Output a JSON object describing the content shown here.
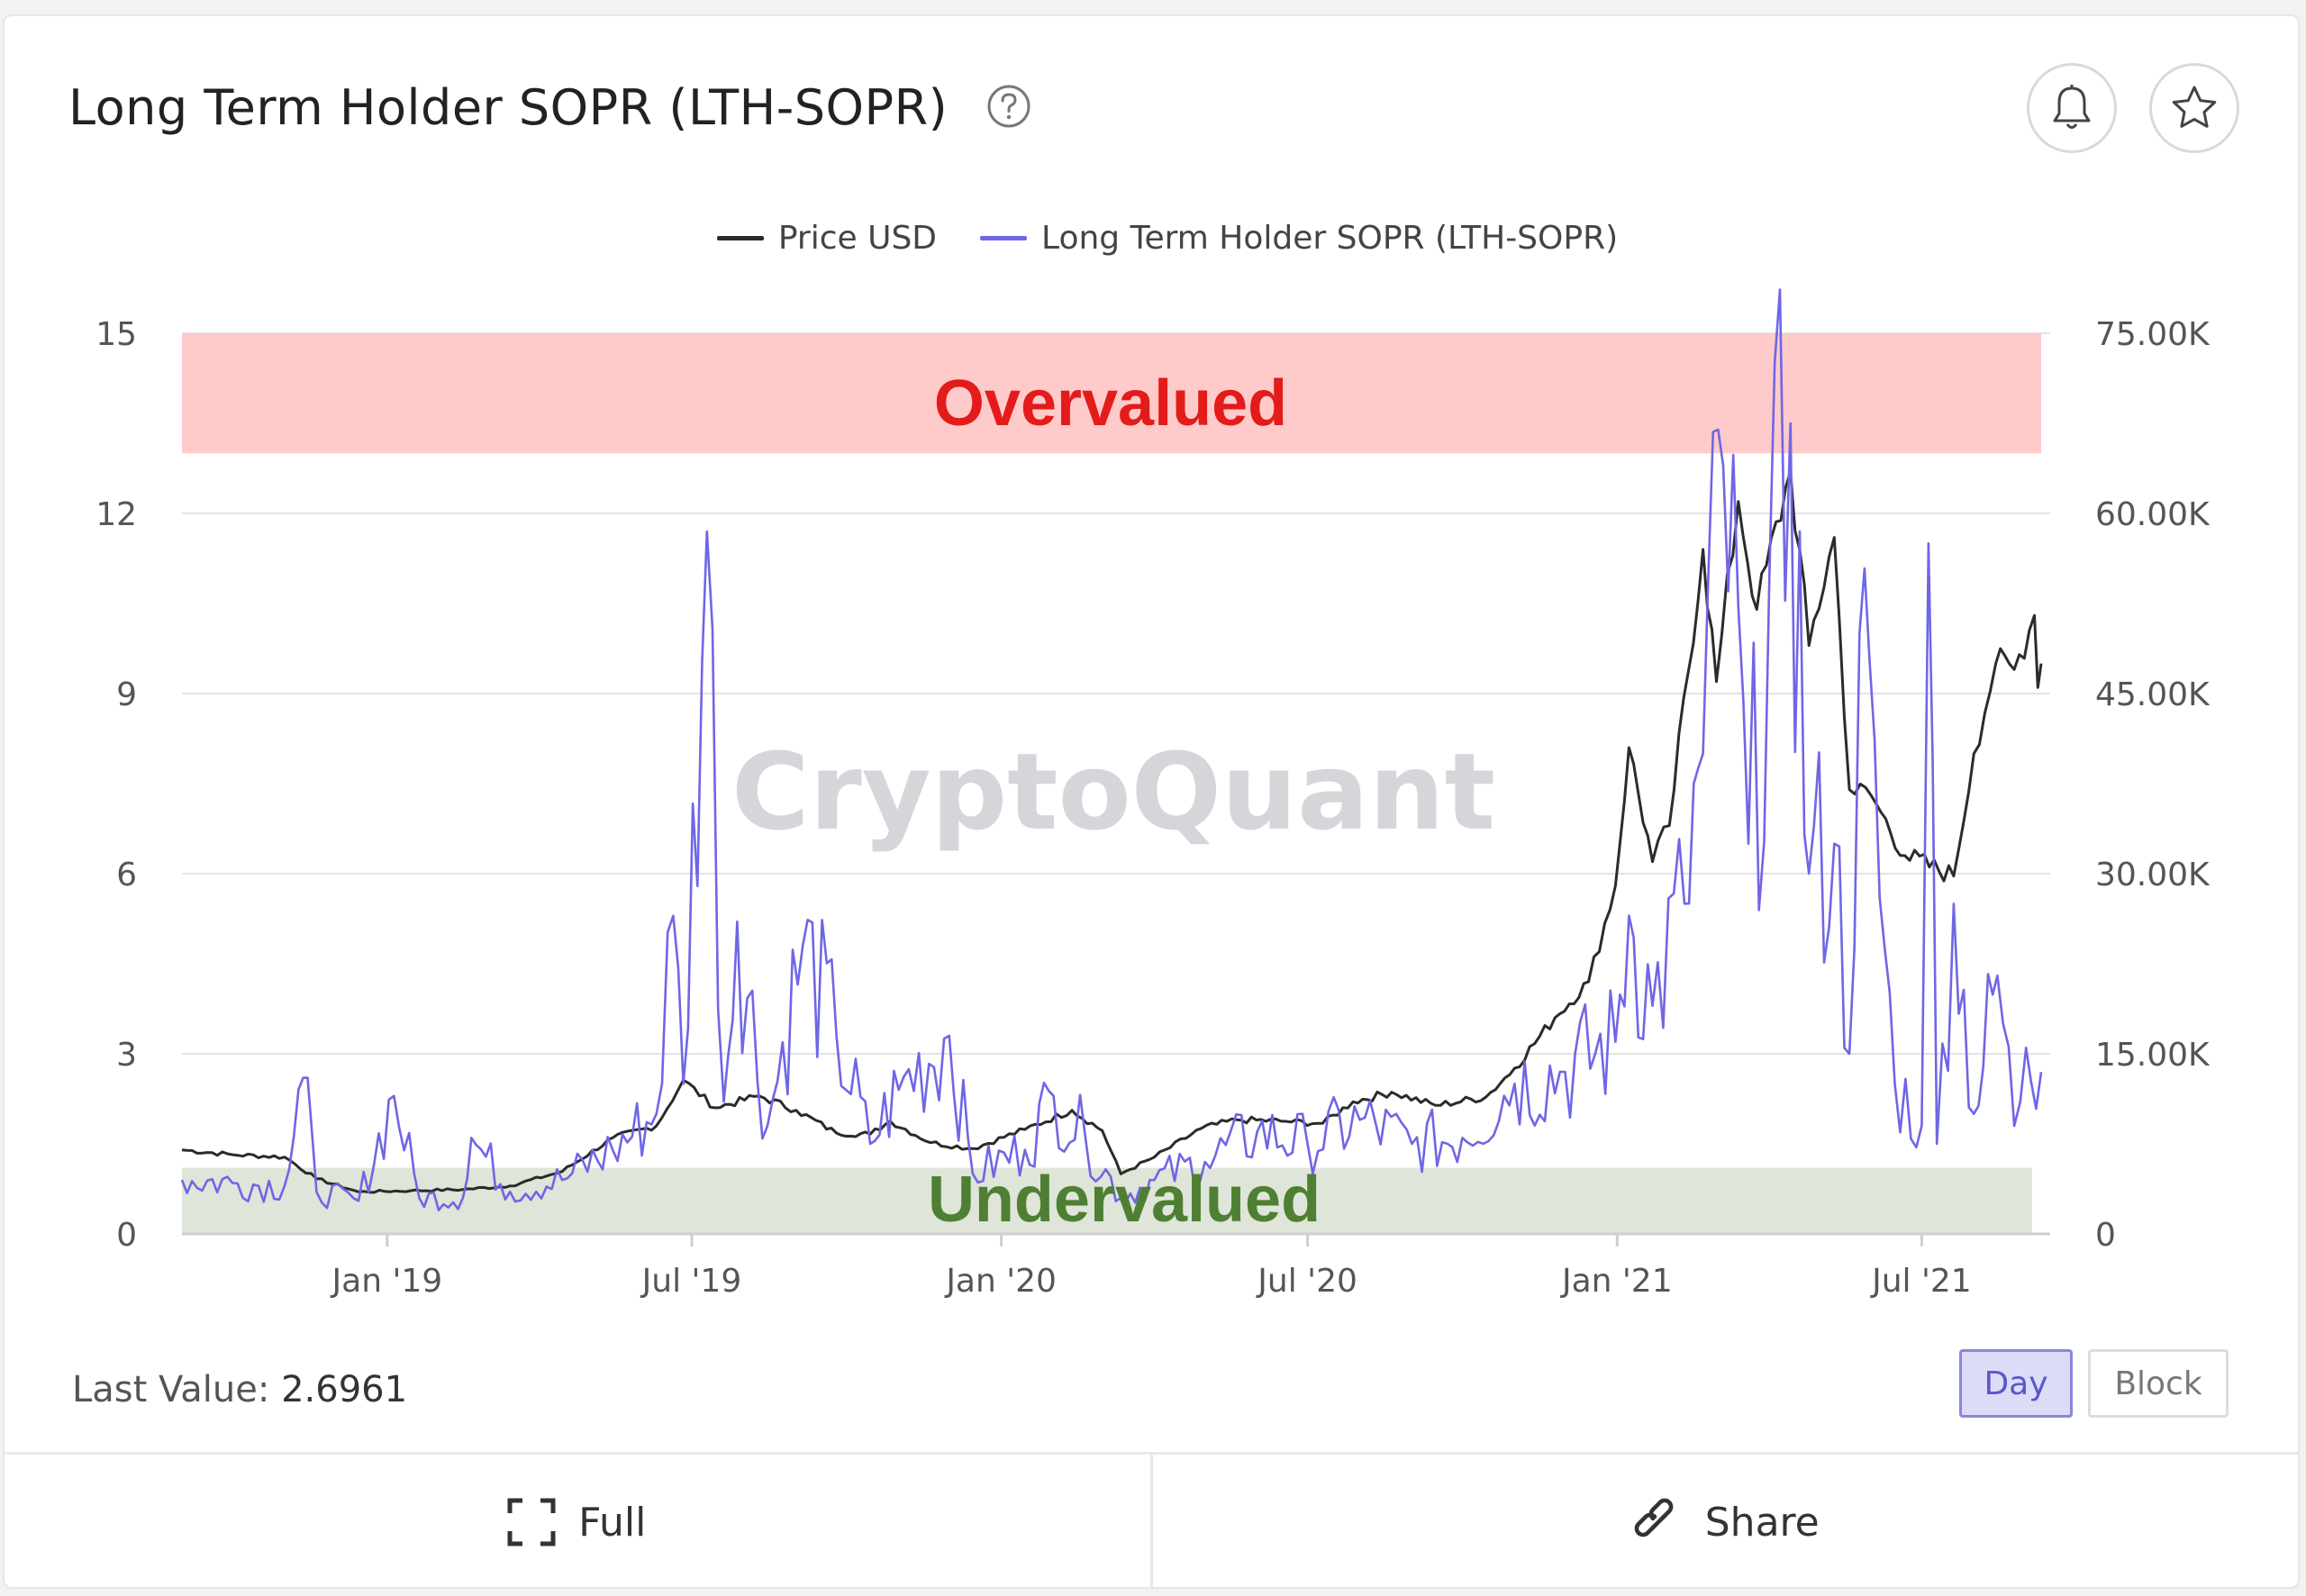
{
  "header": {
    "title": "Long Term Holder SOPR (LTH-SOPR)",
    "help_icon": "question-circle-icon",
    "bell_icon": "bell-icon",
    "star_icon": "star-icon"
  },
  "watermark": "CryptoQuant",
  "zones": {
    "overvalued": {
      "label": "Overvalued",
      "from": 13,
      "to": 15,
      "color": "#ffcaca",
      "text_color": "#e31b1b"
    },
    "undervalued": {
      "label": "Undervalued",
      "from": 0,
      "to": 1.1,
      "color": "#dfe5d8",
      "text_color": "#4e7f33"
    }
  },
  "footer": {
    "last_value_label": "Last Value:",
    "last_value": "2.6961",
    "day_label": "Day",
    "block_label": "Block",
    "full_label": "Full",
    "share_label": "Share"
  },
  "chart_data": {
    "type": "line",
    "title": "Long Term Holder SOPR (LTH-SOPR)",
    "x_range": [
      "2018-09-01",
      "2021-09-10"
    ],
    "x_ticks": [
      {
        "label": "Jan '19",
        "date": "2019-01-01"
      },
      {
        "label": "Jul '19",
        "date": "2019-07-01"
      },
      {
        "label": "Jan '20",
        "date": "2020-01-01"
      },
      {
        "label": "Jul '20",
        "date": "2020-07-01"
      },
      {
        "label": "Jan '21",
        "date": "2021-01-01"
      },
      {
        "label": "Jul '21",
        "date": "2021-07-01"
      }
    ],
    "y_left": {
      "min": 0,
      "max": 15,
      "ticks": [
        0,
        3,
        6,
        9,
        12,
        15
      ],
      "tick_labels": [
        "0",
        "3",
        "6",
        "9",
        "12",
        "15"
      ]
    },
    "y_right": {
      "min": 0,
      "max": 75000,
      "ticks": [
        0,
        15000,
        30000,
        45000,
        60000,
        75000
      ],
      "tick_labels": [
        "0",
        "15.00K",
        "30.00K",
        "45.00K",
        "60.00K",
        "75.00K"
      ]
    },
    "grid": true,
    "legend_position": "top-center",
    "series": [
      {
        "name": "Price USD",
        "axis": "right",
        "color": "#2b2b2b",
        "points": [
          [
            "2018-09-01",
            7000
          ],
          [
            "2018-10-01",
            6600
          ],
          [
            "2018-11-01",
            6400
          ],
          [
            "2018-11-20",
            4600
          ],
          [
            "2018-12-15",
            3500
          ],
          [
            "2019-01-15",
            3600
          ],
          [
            "2019-02-15",
            3700
          ],
          [
            "2019-03-15",
            4000
          ],
          [
            "2019-04-15",
            5200
          ],
          [
            "2019-05-15",
            8000
          ],
          [
            "2019-06-10",
            9000
          ],
          [
            "2019-06-26",
            12800
          ],
          [
            "2019-07-15",
            10500
          ],
          [
            "2019-08-10",
            11500
          ],
          [
            "2019-09-01",
            10300
          ],
          [
            "2019-09-25",
            8400
          ],
          [
            "2019-10-15",
            8300
          ],
          [
            "2019-10-27",
            9400
          ],
          [
            "2019-11-20",
            7600
          ],
          [
            "2019-12-15",
            7100
          ],
          [
            "2020-01-15",
            8700
          ],
          [
            "2020-02-12",
            10300
          ],
          [
            "2020-03-01",
            8600
          ],
          [
            "2020-03-12",
            5000
          ],
          [
            "2020-04-01",
            6400
          ],
          [
            "2020-04-29",
            8800
          ],
          [
            "2020-05-20",
            9500
          ],
          [
            "2020-06-15",
            9400
          ],
          [
            "2020-07-10",
            9200
          ],
          [
            "2020-07-28",
            11000
          ],
          [
            "2020-08-20",
            11800
          ],
          [
            "2020-09-15",
            10700
          ],
          [
            "2020-10-15",
            11400
          ],
          [
            "2020-11-01",
            13800
          ],
          [
            "2020-11-25",
            18000
          ],
          [
            "2020-12-15",
            21000
          ],
          [
            "2020-12-31",
            29000
          ],
          [
            "2021-01-08",
            40500
          ],
          [
            "2021-01-22",
            31000
          ],
          [
            "2021-02-01",
            34000
          ],
          [
            "2021-02-21",
            57000
          ],
          [
            "2021-03-01",
            46000
          ],
          [
            "2021-03-14",
            61000
          ],
          [
            "2021-03-25",
            52000
          ],
          [
            "2021-04-14",
            63500
          ],
          [
            "2021-04-25",
            49000
          ],
          [
            "2021-05-10",
            58000
          ],
          [
            "2021-05-19",
            37000
          ],
          [
            "2021-06-01",
            36500
          ],
          [
            "2021-06-21",
            31500
          ],
          [
            "2021-07-20",
            29800
          ],
          [
            "2021-08-01",
            40000
          ],
          [
            "2021-08-14",
            47500
          ],
          [
            "2021-08-25",
            47000
          ],
          [
            "2021-09-06",
            51500
          ],
          [
            "2021-09-08",
            45500
          ],
          [
            "2021-09-10",
            47500
          ]
        ]
      },
      {
        "name": "Long Term Holder SOPR (LTH-SOPR)",
        "axis": "left",
        "color": "#6f66e6",
        "points": [
          [
            "2018-09-01",
            0.9
          ],
          [
            "2018-10-01",
            0.85
          ],
          [
            "2018-11-01",
            0.8
          ],
          [
            "2018-11-12",
            2.6
          ],
          [
            "2018-11-20",
            0.7
          ],
          [
            "2018-12-15",
            0.55
          ],
          [
            "2019-01-05",
            2.3
          ],
          [
            "2019-01-20",
            0.6
          ],
          [
            "2019-02-15",
            0.6
          ],
          [
            "2019-02-20",
            1.6
          ],
          [
            "2019-03-15",
            0.7
          ],
          [
            "2019-04-15",
            0.9
          ],
          [
            "2019-05-15",
            1.4
          ],
          [
            "2019-06-10",
            2.0
          ],
          [
            "2019-06-20",
            5.3
          ],
          [
            "2019-06-26",
            2.5
          ],
          [
            "2019-07-10",
            11.7
          ],
          [
            "2019-07-20",
            2.2
          ],
          [
            "2019-07-28",
            5.2
          ],
          [
            "2019-08-15",
            1.8
          ],
          [
            "2019-09-05",
            4.8
          ],
          [
            "2019-09-25",
            3.3
          ],
          [
            "2019-10-15",
            1.5
          ],
          [
            "2019-11-01",
            2.4
          ],
          [
            "2019-12-01",
            3.3
          ],
          [
            "2019-12-15",
            1.0
          ],
          [
            "2020-01-15",
            1.4
          ],
          [
            "2020-02-01",
            2.3
          ],
          [
            "2020-02-20",
            1.6
          ],
          [
            "2020-03-12",
            0.6
          ],
          [
            "2020-04-01",
            0.9
          ],
          [
            "2020-05-01",
            1.2
          ],
          [
            "2020-06-01",
            1.7
          ],
          [
            "2020-07-01",
            1.5
          ],
          [
            "2020-08-01",
            1.9
          ],
          [
            "2020-09-01",
            1.5
          ],
          [
            "2020-10-01",
            1.6
          ],
          [
            "2020-11-01",
            2.5
          ],
          [
            "2020-12-01",
            2.7
          ],
          [
            "2020-12-31",
            3.2
          ],
          [
            "2021-01-08",
            5.3
          ],
          [
            "2021-01-22",
            3.8
          ],
          [
            "2021-02-10",
            5.5
          ],
          [
            "2021-02-21",
            8.0
          ],
          [
            "2021-03-05",
            12.8
          ],
          [
            "2021-03-20",
            6.5
          ],
          [
            "2021-04-14",
            13.5
          ],
          [
            "2021-04-25",
            6.0
          ],
          [
            "2021-05-10",
            6.5
          ],
          [
            "2021-05-19",
            3.0
          ],
          [
            "2021-05-25",
            10.0
          ],
          [
            "2021-06-15",
            2.5
          ],
          [
            "2021-07-01",
            1.8
          ],
          [
            "2021-07-05",
            11.5
          ],
          [
            "2021-07-10",
            1.5
          ],
          [
            "2021-07-20",
            5.5
          ],
          [
            "2021-08-01",
            2.0
          ],
          [
            "2021-08-15",
            4.3
          ],
          [
            "2021-08-25",
            1.8
          ],
          [
            "2021-09-01",
            3.1
          ],
          [
            "2021-09-10",
            2.6961
          ]
        ]
      }
    ]
  }
}
